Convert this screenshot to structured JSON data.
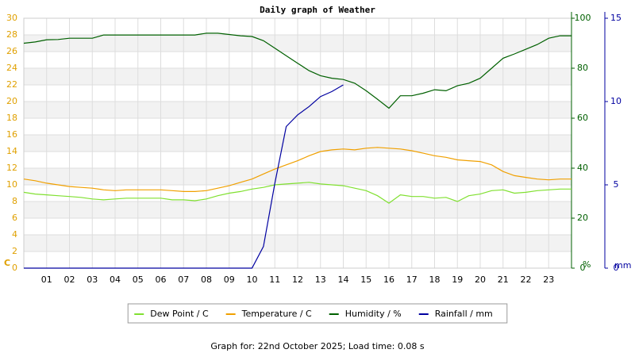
{
  "chart_data": {
    "type": "line",
    "title": "Daily graph of Weather",
    "footer": "Graph for: 22nd October 2025; Load time: 0.08 s",
    "x": [
      0,
      0.5,
      1,
      1.5,
      2,
      2.5,
      3,
      3.5,
      4,
      4.5,
      5,
      5.5,
      6,
      6.5,
      7,
      7.5,
      8,
      8.5,
      9,
      9.5,
      10,
      10.5,
      11,
      11.5,
      12,
      12.5,
      13,
      13.5,
      14,
      14.5,
      15,
      15.5,
      16,
      16.5,
      17,
      17.5,
      18,
      18.5,
      19,
      19.5,
      20,
      20.5,
      21,
      21.5,
      22,
      22.5,
      23,
      23.5,
      24
    ],
    "xlim": [
      0,
      24
    ],
    "xticks": [
      {
        "value": 1,
        "label": "01"
      },
      {
        "value": 2,
        "label": "02"
      },
      {
        "value": 3,
        "label": "03"
      },
      {
        "value": 4,
        "label": "04"
      },
      {
        "value": 5,
        "label": "05"
      },
      {
        "value": 6,
        "label": "06"
      },
      {
        "value": 7,
        "label": "07"
      },
      {
        "value": 8,
        "label": "08"
      },
      {
        "value": 9,
        "label": "09"
      },
      10,
      11,
      12,
      13,
      14,
      15,
      16,
      17,
      18,
      19,
      20,
      21,
      22,
      23
    ],
    "ylabel": "C",
    "ylim": [
      0,
      30
    ],
    "yticks": [
      0,
      2,
      4,
      6,
      8,
      10,
      12,
      14,
      16,
      18,
      20,
      22,
      24,
      26,
      28,
      30
    ],
    "ycolor": "#e0a000",
    "y2label": "%",
    "y2lim": [
      0,
      100
    ],
    "y2ticks": [
      0,
      20,
      40,
      60,
      80,
      100
    ],
    "y2color": "#006000",
    "y3label": "mm",
    "y3lim": [
      0,
      15
    ],
    "y3ticks": [
      0,
      5,
      10,
      15
    ],
    "y3color": "#0000a0",
    "grid": true,
    "series": [
      {
        "name": "Dew Point / C",
        "color": "#80e030",
        "axis": "y",
        "values": [
          9.1,
          8.9,
          8.8,
          8.7,
          8.6,
          8.5,
          8.3,
          8.2,
          8.3,
          8.4,
          8.4,
          8.4,
          8.4,
          8.2,
          8.2,
          8.1,
          8.3,
          8.7,
          9.0,
          9.2,
          9.5,
          9.7,
          10.0,
          10.1,
          10.2,
          10.3,
          10.1,
          10.0,
          9.9,
          9.6,
          9.3,
          8.7,
          7.8,
          8.8,
          8.6,
          8.6,
          8.4,
          8.5,
          8.0,
          8.7,
          8.9,
          9.3,
          9.4,
          9.0,
          9.1,
          9.3,
          9.4,
          9.5,
          9.5
        ]
      },
      {
        "name": "Temperature / C",
        "color": "#f0a000",
        "axis": "y",
        "values": [
          10.7,
          10.5,
          10.2,
          10.0,
          9.8,
          9.7,
          9.6,
          9.4,
          9.3,
          9.4,
          9.4,
          9.4,
          9.4,
          9.3,
          9.2,
          9.2,
          9.3,
          9.6,
          9.9,
          10.3,
          10.7,
          11.3,
          11.9,
          12.4,
          12.9,
          13.5,
          14.0,
          14.2,
          14.3,
          14.2,
          14.4,
          14.5,
          14.4,
          14.3,
          14.1,
          13.8,
          13.5,
          13.3,
          13.0,
          12.9,
          12.8,
          12.4,
          11.6,
          11.1,
          10.9,
          10.7,
          10.6,
          10.7,
          10.7
        ]
      },
      {
        "name": "Humidity / %",
        "color": "#006000",
        "axis": "y2",
        "values": [
          90,
          90.5,
          91.4,
          91.5,
          92,
          92,
          92,
          93.3,
          93.3,
          93.3,
          93.3,
          93.3,
          93.3,
          93.3,
          93.3,
          93.3,
          94,
          94,
          93.5,
          93,
          92.7,
          91,
          88,
          85,
          82,
          79,
          77,
          76,
          75.5,
          74,
          71,
          67.6,
          64,
          69,
          69,
          70,
          71.4,
          71,
          73,
          74,
          76,
          80,
          84,
          85.7,
          87.6,
          89.5,
          92,
          93,
          93
        ]
      },
      {
        "name": "Rainfall / mm",
        "color": "#0000a0",
        "axis": "y3",
        "values": [
          0,
          0,
          0,
          0,
          0,
          0,
          0,
          0,
          0,
          0,
          0,
          0,
          0,
          0,
          0,
          0,
          0,
          0,
          0,
          0,
          0,
          1.3,
          5.1,
          8.5,
          9.2,
          9.7,
          10.3,
          10.6,
          11.0,
          null,
          null,
          null,
          null,
          null,
          null,
          null,
          null,
          null,
          null,
          null,
          null,
          null,
          null,
          null,
          null,
          null,
          null,
          null,
          null
        ]
      }
    ]
  }
}
